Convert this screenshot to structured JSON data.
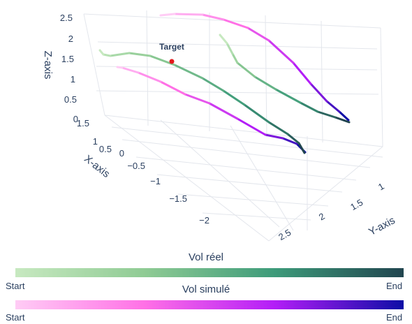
{
  "chart_data": {
    "type": "line3d",
    "axes": {
      "x": {
        "title": "X-axis",
        "ticks": [
          "1.5",
          "1",
          "0.5",
          "0",
          "−0.5",
          "−1",
          "−1.5",
          "−2"
        ]
      },
      "y": {
        "title": "Y-axis",
        "ticks": [
          "1",
          "1.5",
          "2",
          "2.5"
        ]
      },
      "z": {
        "title": "Z-axis",
        "ticks": [
          "0",
          "0.5",
          "1",
          "1.5",
          "2",
          "2.5"
        ]
      }
    },
    "annotation": {
      "label": "Target",
      "color": "#e31a1c"
    },
    "series": [
      {
        "name": "Vol réel",
        "colorscale": [
          "#c7e9c0",
          "#8fcb94",
          "#3d9b7a",
          "#21454f"
        ],
        "segments": 2
      },
      {
        "name": "Vol simulé",
        "colorscale": [
          "#ffccf5",
          "#ff70e6",
          "#b31ef7",
          "#0d0da6"
        ],
        "segments": 2
      }
    ],
    "colorbars": [
      {
        "title": "Vol réel",
        "start_label": "Start",
        "end_label": "End"
      },
      {
        "title": "Vol simulé",
        "start_label": "Start",
        "end_label": "End"
      }
    ]
  }
}
